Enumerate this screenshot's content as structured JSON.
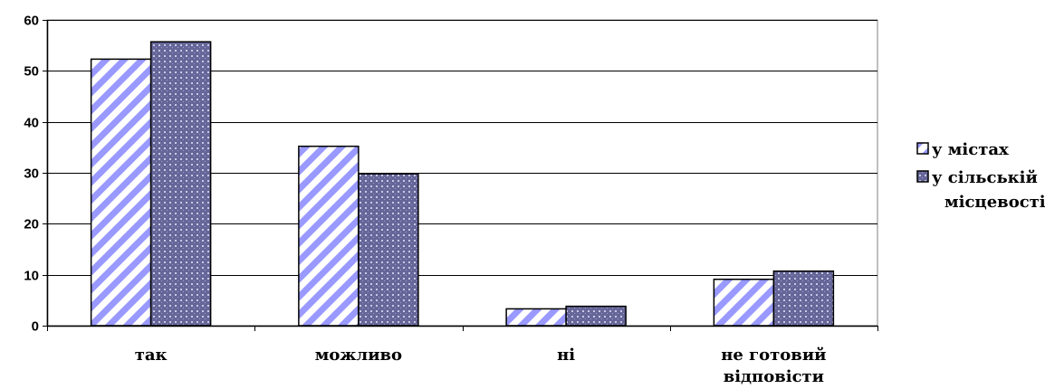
{
  "chart_data": {
    "type": "bar",
    "categories": [
      [
        "так"
      ],
      [
        "можливо"
      ],
      [
        "ні"
      ],
      [
        "не готовий",
        "відповісти"
      ]
    ],
    "series": [
      {
        "name": "у містах",
        "values": [
          52.3,
          35.2,
          3.3,
          9.1
        ],
        "pattern": "stripes",
        "color": "#9999ff"
      },
      {
        "name": "у сільській місцевості",
        "name_lines": [
          "у сільській",
          "місцевості"
        ],
        "values": [
          55.7,
          29.8,
          3.8,
          10.7
        ],
        "pattern": "dots",
        "color": "#666699"
      }
    ],
    "ylim": [
      0,
      60
    ],
    "yticks": [
      0,
      10,
      20,
      30,
      40,
      50,
      60
    ],
    "grid": true,
    "legend": "right",
    "title": "",
    "xlabel": "",
    "ylabel": ""
  }
}
